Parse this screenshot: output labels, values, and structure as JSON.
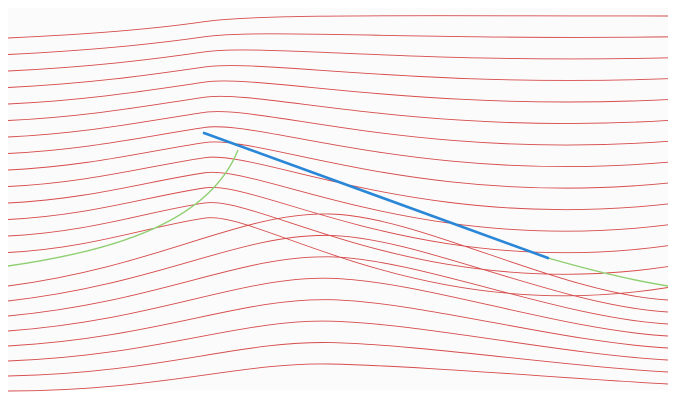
{
  "colors": {
    "streamline": "#d64b4b",
    "dividing_streamline": "#8fcf72",
    "plate": "#2a86d6",
    "background": "#ffffff"
  },
  "figure": {
    "description_elements": [
      "streamlines",
      "dividing-streamline",
      "flat-plate"
    ]
  }
}
